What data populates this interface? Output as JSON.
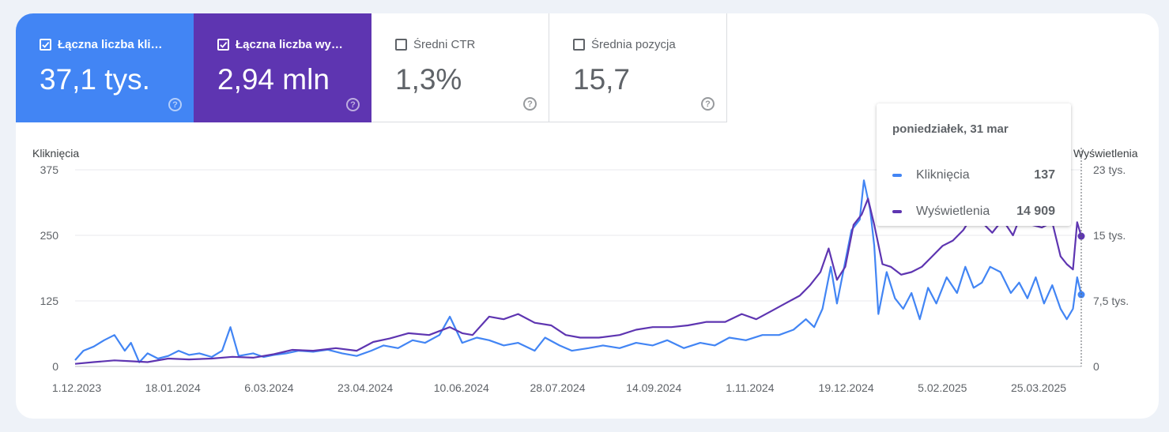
{
  "cards": [
    {
      "label": "Łączna liczba kliknięć",
      "value": "37,1 tys.",
      "checked": true,
      "color": "#4285f4"
    },
    {
      "label": "Łączna liczba wyświetleń",
      "value": "2,94 mln",
      "checked": true,
      "color": "#5e35b1"
    },
    {
      "label": "Średni CTR",
      "value": "1,3%",
      "checked": false,
      "color": "#ffffff"
    },
    {
      "label": "Średnia pozycja",
      "value": "15,7",
      "checked": false,
      "color": "#ffffff"
    }
  ],
  "help_icon": "?",
  "tooltip": {
    "date": "poniedziałek, 31 mar",
    "rows": [
      {
        "name": "Kliknięcia",
        "value": "137",
        "color": "#4285f4"
      },
      {
        "name": "Wyświetlenia",
        "value": "14 909",
        "color": "#5e35b1"
      }
    ]
  },
  "chart_data": {
    "type": "line",
    "x_tick_labels": [
      "1.12.2023",
      "18.01.2024",
      "6.03.2024",
      "23.04.2024",
      "10.06.2024",
      "28.07.2024",
      "14.09.2024",
      "1.11.2024",
      "19.12.2024",
      "5.02.2025",
      "25.03.2025"
    ],
    "y_left": {
      "label": "Kliknięcia",
      "ticks": [
        "0",
        "125",
        "250",
        "375"
      ],
      "range": [
        0,
        375
      ]
    },
    "y_right": {
      "label": "Wyświetlenia",
      "ticks": [
        "0",
        "7,5 tys.",
        "15 tys.",
        "23 tys."
      ],
      "range": [
        0,
        22500
      ]
    },
    "x_range": [
      "2023-12-01",
      "2025-03-31"
    ],
    "grid": true,
    "series": [
      {
        "name": "Kliknięcia",
        "axis": "left",
        "color": "#4285f4",
        "points": [
          [
            "2023-12-01",
            12
          ],
          [
            "2023-12-05",
            30
          ],
          [
            "2023-12-10",
            38
          ],
          [
            "2023-12-15",
            50
          ],
          [
            "2023-12-20",
            60
          ],
          [
            "2023-12-25",
            30
          ],
          [
            "2023-12-28",
            45
          ],
          [
            "2024-01-01",
            8
          ],
          [
            "2024-01-05",
            25
          ],
          [
            "2024-01-10",
            15
          ],
          [
            "2024-01-15",
            20
          ],
          [
            "2024-01-20",
            30
          ],
          [
            "2024-01-25",
            22
          ],
          [
            "2024-01-30",
            25
          ],
          [
            "2024-02-05",
            18
          ],
          [
            "2024-02-10",
            30
          ],
          [
            "2024-02-14",
            75
          ],
          [
            "2024-02-18",
            20
          ],
          [
            "2024-02-25",
            25
          ],
          [
            "2024-03-01",
            18
          ],
          [
            "2024-03-06",
            22
          ],
          [
            "2024-03-12",
            25
          ],
          [
            "2024-03-18",
            30
          ],
          [
            "2024-03-25",
            28
          ],
          [
            "2024-04-01",
            32
          ],
          [
            "2024-04-08",
            25
          ],
          [
            "2024-04-15",
            20
          ],
          [
            "2024-04-22",
            30
          ],
          [
            "2024-04-28",
            40
          ],
          [
            "2024-05-05",
            35
          ],
          [
            "2024-05-12",
            50
          ],
          [
            "2024-05-18",
            45
          ],
          [
            "2024-05-25",
            60
          ],
          [
            "2024-05-30",
            95
          ],
          [
            "2024-06-05",
            45
          ],
          [
            "2024-06-12",
            55
          ],
          [
            "2024-06-18",
            50
          ],
          [
            "2024-06-25",
            40
          ],
          [
            "2024-07-02",
            45
          ],
          [
            "2024-07-10",
            30
          ],
          [
            "2024-07-15",
            55
          ],
          [
            "2024-07-22",
            40
          ],
          [
            "2024-07-28",
            30
          ],
          [
            "2024-08-05",
            35
          ],
          [
            "2024-08-12",
            40
          ],
          [
            "2024-08-20",
            35
          ],
          [
            "2024-08-28",
            45
          ],
          [
            "2024-09-05",
            40
          ],
          [
            "2024-09-12",
            50
          ],
          [
            "2024-09-20",
            35
          ],
          [
            "2024-09-28",
            45
          ],
          [
            "2024-10-05",
            40
          ],
          [
            "2024-10-12",
            55
          ],
          [
            "2024-10-20",
            50
          ],
          [
            "2024-10-28",
            60
          ],
          [
            "2024-11-05",
            60
          ],
          [
            "2024-11-12",
            70
          ],
          [
            "2024-11-18",
            90
          ],
          [
            "2024-11-22",
            75
          ],
          [
            "2024-11-26",
            110
          ],
          [
            "2024-11-30",
            190
          ],
          [
            "2024-12-03",
            120
          ],
          [
            "2024-12-07",
            200
          ],
          [
            "2024-12-10",
            260
          ],
          [
            "2024-12-14",
            280
          ],
          [
            "2024-12-16",
            355
          ],
          [
            "2024-12-19",
            300
          ],
          [
            "2024-12-21",
            230
          ],
          [
            "2024-12-23",
            100
          ],
          [
            "2024-12-27",
            180
          ],
          [
            "2024-12-31",
            130
          ],
          [
            "2025-01-04",
            110
          ],
          [
            "2025-01-08",
            140
          ],
          [
            "2025-01-12",
            90
          ],
          [
            "2025-01-16",
            150
          ],
          [
            "2025-01-20",
            120
          ],
          [
            "2025-01-25",
            170
          ],
          [
            "2025-01-30",
            140
          ],
          [
            "2025-02-03",
            190
          ],
          [
            "2025-02-07",
            150
          ],
          [
            "2025-02-11",
            160
          ],
          [
            "2025-02-15",
            190
          ],
          [
            "2025-02-20",
            180
          ],
          [
            "2025-02-25",
            140
          ],
          [
            "2025-03-01",
            160
          ],
          [
            "2025-03-05",
            130
          ],
          [
            "2025-03-09",
            170
          ],
          [
            "2025-03-13",
            120
          ],
          [
            "2025-03-17",
            155
          ],
          [
            "2025-03-21",
            110
          ],
          [
            "2025-03-24",
            90
          ],
          [
            "2025-03-27",
            110
          ],
          [
            "2025-03-29",
            170
          ],
          [
            "2025-03-31",
            137
          ]
        ]
      },
      {
        "name": "Wyświetlenia",
        "axis": "right",
        "color": "#5e35b1",
        "points": [
          [
            "2023-12-01",
            300
          ],
          [
            "2023-12-10",
            500
          ],
          [
            "2023-12-20",
            700
          ],
          [
            "2023-12-28",
            600
          ],
          [
            "2024-01-05",
            500
          ],
          [
            "2024-01-15",
            900
          ],
          [
            "2024-01-25",
            800
          ],
          [
            "2024-02-05",
            900
          ],
          [
            "2024-02-15",
            1100
          ],
          [
            "2024-02-25",
            1000
          ],
          [
            "2024-03-06",
            1400
          ],
          [
            "2024-03-15",
            1900
          ],
          [
            "2024-03-25",
            1800
          ],
          [
            "2024-04-05",
            2100
          ],
          [
            "2024-04-15",
            1800
          ],
          [
            "2024-04-23",
            2800
          ],
          [
            "2024-05-01",
            3200
          ],
          [
            "2024-05-10",
            3800
          ],
          [
            "2024-05-20",
            3600
          ],
          [
            "2024-05-30",
            4500
          ],
          [
            "2024-06-05",
            3800
          ],
          [
            "2024-06-10",
            3600
          ],
          [
            "2024-06-18",
            5700
          ],
          [
            "2024-06-25",
            5400
          ],
          [
            "2024-07-02",
            6000
          ],
          [
            "2024-07-10",
            5000
          ],
          [
            "2024-07-18",
            4700
          ],
          [
            "2024-07-25",
            3600
          ],
          [
            "2024-08-01",
            3300
          ],
          [
            "2024-08-10",
            3300
          ],
          [
            "2024-08-20",
            3600
          ],
          [
            "2024-08-28",
            4200
          ],
          [
            "2024-09-05",
            4500
          ],
          [
            "2024-09-14",
            4500
          ],
          [
            "2024-09-22",
            4700
          ],
          [
            "2024-10-01",
            5100
          ],
          [
            "2024-10-10",
            5100
          ],
          [
            "2024-10-18",
            6000
          ],
          [
            "2024-10-25",
            5400
          ],
          [
            "2024-11-01",
            6300
          ],
          [
            "2024-11-08",
            7200
          ],
          [
            "2024-11-15",
            8100
          ],
          [
            "2024-11-20",
            9300
          ],
          [
            "2024-11-25",
            10800
          ],
          [
            "2024-11-29",
            13500
          ],
          [
            "2024-12-03",
            9900
          ],
          [
            "2024-12-07",
            11400
          ],
          [
            "2024-12-11",
            16200
          ],
          [
            "2024-12-15",
            17400
          ],
          [
            "2024-12-18",
            19200
          ],
          [
            "2024-12-21",
            16200
          ],
          [
            "2024-12-25",
            11700
          ],
          [
            "2024-12-29",
            11400
          ],
          [
            "2025-01-03",
            10500
          ],
          [
            "2025-01-08",
            10800
          ],
          [
            "2025-01-13",
            11400
          ],
          [
            "2025-01-18",
            12600
          ],
          [
            "2025-01-23",
            13800
          ],
          [
            "2025-01-28",
            14400
          ],
          [
            "2025-02-02",
            15600
          ],
          [
            "2025-02-06",
            17100
          ],
          [
            "2025-02-11",
            16500
          ],
          [
            "2025-02-16",
            15300
          ],
          [
            "2025-02-21",
            16800
          ],
          [
            "2025-02-26",
            15000
          ],
          [
            "2025-03-02",
            17400
          ],
          [
            "2025-03-07",
            16200
          ],
          [
            "2025-03-12",
            15900
          ],
          [
            "2025-03-17",
            16500
          ],
          [
            "2025-03-21",
            12600
          ],
          [
            "2025-03-24",
            11700
          ],
          [
            "2025-03-27",
            11100
          ],
          [
            "2025-03-29",
            16500
          ],
          [
            "2025-03-31",
            14909
          ]
        ]
      }
    ]
  }
}
